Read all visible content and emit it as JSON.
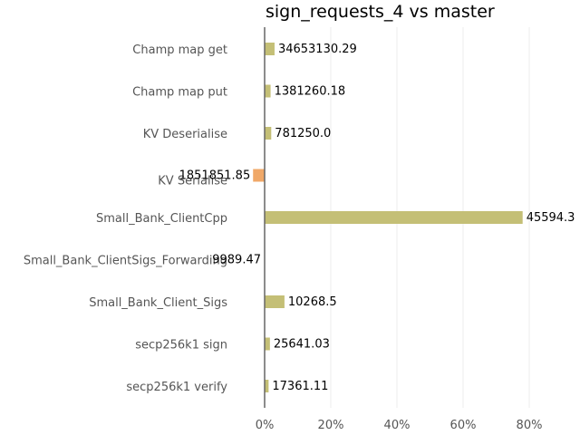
{
  "chart_data": {
    "type": "bar",
    "orientation": "horizontal",
    "title": "sign_requests_4 vs master",
    "xlabel": "",
    "ylabel": "",
    "xlim": [
      -3,
      93
    ],
    "x_ticks": [
      0,
      20,
      40,
      60,
      80
    ],
    "x_tick_labels": [
      "0%",
      "20%",
      "40%",
      "60%",
      "80%"
    ],
    "grid": true,
    "legend": "none",
    "categories": [
      "Champ map get",
      "Champ map put",
      "KV Deserialise",
      "KV Serialise",
      "Small_Bank_ClientCpp",
      "Small_Bank_ClientSigs_Forwarding",
      "Small_Bank_Client_Sigs",
      "secp256k1 sign",
      "secp256k1 verify"
    ],
    "values": [
      3.0,
      1.8,
      2.0,
      -3.5,
      78.0,
      0.0,
      6.0,
      1.6,
      1.2
    ],
    "data_labels": [
      "34653130.29",
      "1381260.18",
      "781250.0",
      "1851851.85",
      "45594.3",
      "9989.47",
      "10268.5",
      "25641.03",
      "17361.11"
    ],
    "colors": {
      "positive": "#c4bf76",
      "negative": "#f0a868"
    }
  }
}
